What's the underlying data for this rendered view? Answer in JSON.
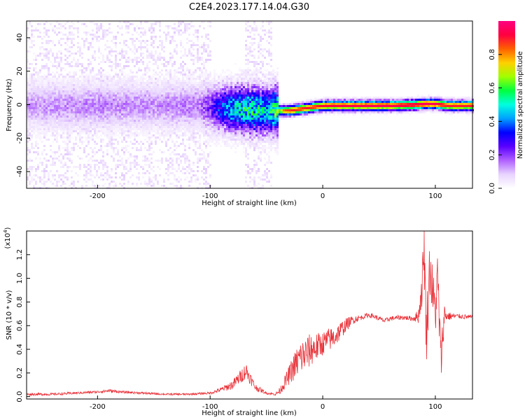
{
  "title": "C2E4.2023.177.14.04.G30",
  "spectrogram": {
    "type": "heatmap",
    "xlabel": "Height of straight line (km)",
    "ylabel": "Frequency (Hz)",
    "xlim": [
      -263,
      133
    ],
    "ylim": [
      -50,
      50
    ],
    "xticks": [
      "-200",
      "-100",
      "0",
      "100"
    ],
    "xtick_values": [
      -200,
      -100,
      0,
      100
    ],
    "yticks": [
      "-40",
      "-20",
      "0",
      "20",
      "40"
    ],
    "ytick_values": [
      -40,
      -20,
      0,
      20,
      40
    ],
    "colorbar": {
      "label": "Normalized spectral amplitude",
      "range": [
        0,
        1
      ],
      "ticks": [
        "0.0",
        "0.2",
        "0.4",
        "0.6",
        "0.8"
      ],
      "tick_values": [
        0,
        0.2,
        0.4,
        0.6,
        0.8
      ]
    },
    "colormap": [
      "#ffffff",
      "#e8d4ff",
      "#b060ff",
      "#5a00ff",
      "#0000ff",
      "#00a0ff",
      "#00ffe0",
      "#00ff40",
      "#a0ff00",
      "#ffd000",
      "#ff6000",
      "#ff0040",
      "#ff0080"
    ],
    "ridge": {
      "x": [
        -263,
        -200,
        -150,
        -110,
        -100,
        -90,
        -80,
        -70,
        -60,
        -50,
        -40,
        -35,
        -30,
        -20,
        -10,
        0,
        20,
        40,
        60,
        80,
        90,
        100,
        110,
        120,
        133
      ],
      "y": [
        0,
        0,
        0,
        0,
        -1,
        -2,
        -2,
        -2.5,
        -3,
        -3,
        -3,
        -3,
        -3,
        -2,
        -1,
        0,
        0,
        0,
        0,
        0.5,
        1,
        1,
        0,
        0,
        0
      ],
      "amplitude": [
        0.12,
        0.14,
        0.13,
        0.15,
        0.22,
        0.35,
        0.45,
        0.5,
        0.5,
        0.45,
        0.6,
        0.85,
        0.88,
        0.9,
        0.9,
        0.92,
        0.93,
        0.95,
        0.95,
        0.95,
        0.96,
        0.95,
        0.9,
        0.9,
        0.9
      ]
    }
  },
  "snr": {
    "type": "line",
    "xlabel": "Height of straight line (km)",
    "ylabel": "SNR (10 * v/v)",
    "exponent_label": "(x10",
    "exponent_power": "4",
    "exponent_close": ")",
    "xlim": [
      -263,
      133
    ],
    "ylim": [
      -0.02,
      1.4
    ],
    "xticks": [
      "-200",
      "-100",
      "0",
      "100"
    ],
    "xtick_values": [
      -200,
      -100,
      0,
      100
    ],
    "yticks": [
      "0.0",
      "0.2",
      "0.4",
      "0.6",
      "0.8",
      "1.0",
      "1.2"
    ],
    "ytick_values": [
      0,
      0.2,
      0.4,
      0.6,
      0.8,
      1.0,
      1.2
    ],
    "color": "#e8333a",
    "x": [
      -263,
      -240,
      -220,
      -200,
      -190,
      -180,
      -160,
      -140,
      -120,
      -100,
      -90,
      -80,
      -72,
      -68,
      -60,
      -50,
      -42,
      -38,
      -30,
      -25,
      -20,
      -15,
      -10,
      -5,
      0,
      5,
      10,
      15,
      20,
      25,
      30,
      35,
      40,
      45,
      50,
      55,
      60,
      70,
      80,
      85,
      88,
      90,
      92,
      95,
      100,
      102,
      105,
      108,
      110,
      120,
      133
    ],
    "y": [
      0.02,
      0.02,
      0.03,
      0.04,
      0.05,
      0.04,
      0.03,
      0.02,
      0.02,
      0.03,
      0.06,
      0.1,
      0.18,
      0.22,
      0.08,
      0.03,
      0.02,
      0.05,
      0.18,
      0.26,
      0.33,
      0.36,
      0.4,
      0.42,
      0.45,
      0.48,
      0.5,
      0.55,
      0.6,
      0.64,
      0.66,
      0.67,
      0.69,
      0.68,
      0.66,
      0.64,
      0.66,
      0.67,
      0.66,
      0.68,
      0.9,
      1.3,
      0.5,
      1.1,
      0.7,
      1.0,
      0.3,
      0.7,
      0.68,
      0.68,
      0.67
    ],
    "noise": [
      0.01,
      0.01,
      0.01,
      0.01,
      0.015,
      0.01,
      0.01,
      0.008,
      0.008,
      0.01,
      0.02,
      0.04,
      0.06,
      0.07,
      0.03,
      0.01,
      0.01,
      0.03,
      0.08,
      0.12,
      0.15,
      0.15,
      0.14,
      0.12,
      0.1,
      0.1,
      0.09,
      0.08,
      0.06,
      0.04,
      0.03,
      0.02,
      0.02,
      0.02,
      0.02,
      0.02,
      0.02,
      0.02,
      0.02,
      0.06,
      0.15,
      0.25,
      0.25,
      0.25,
      0.2,
      0.25,
      0.2,
      0.1,
      0.04,
      0.02,
      0.02
    ]
  }
}
